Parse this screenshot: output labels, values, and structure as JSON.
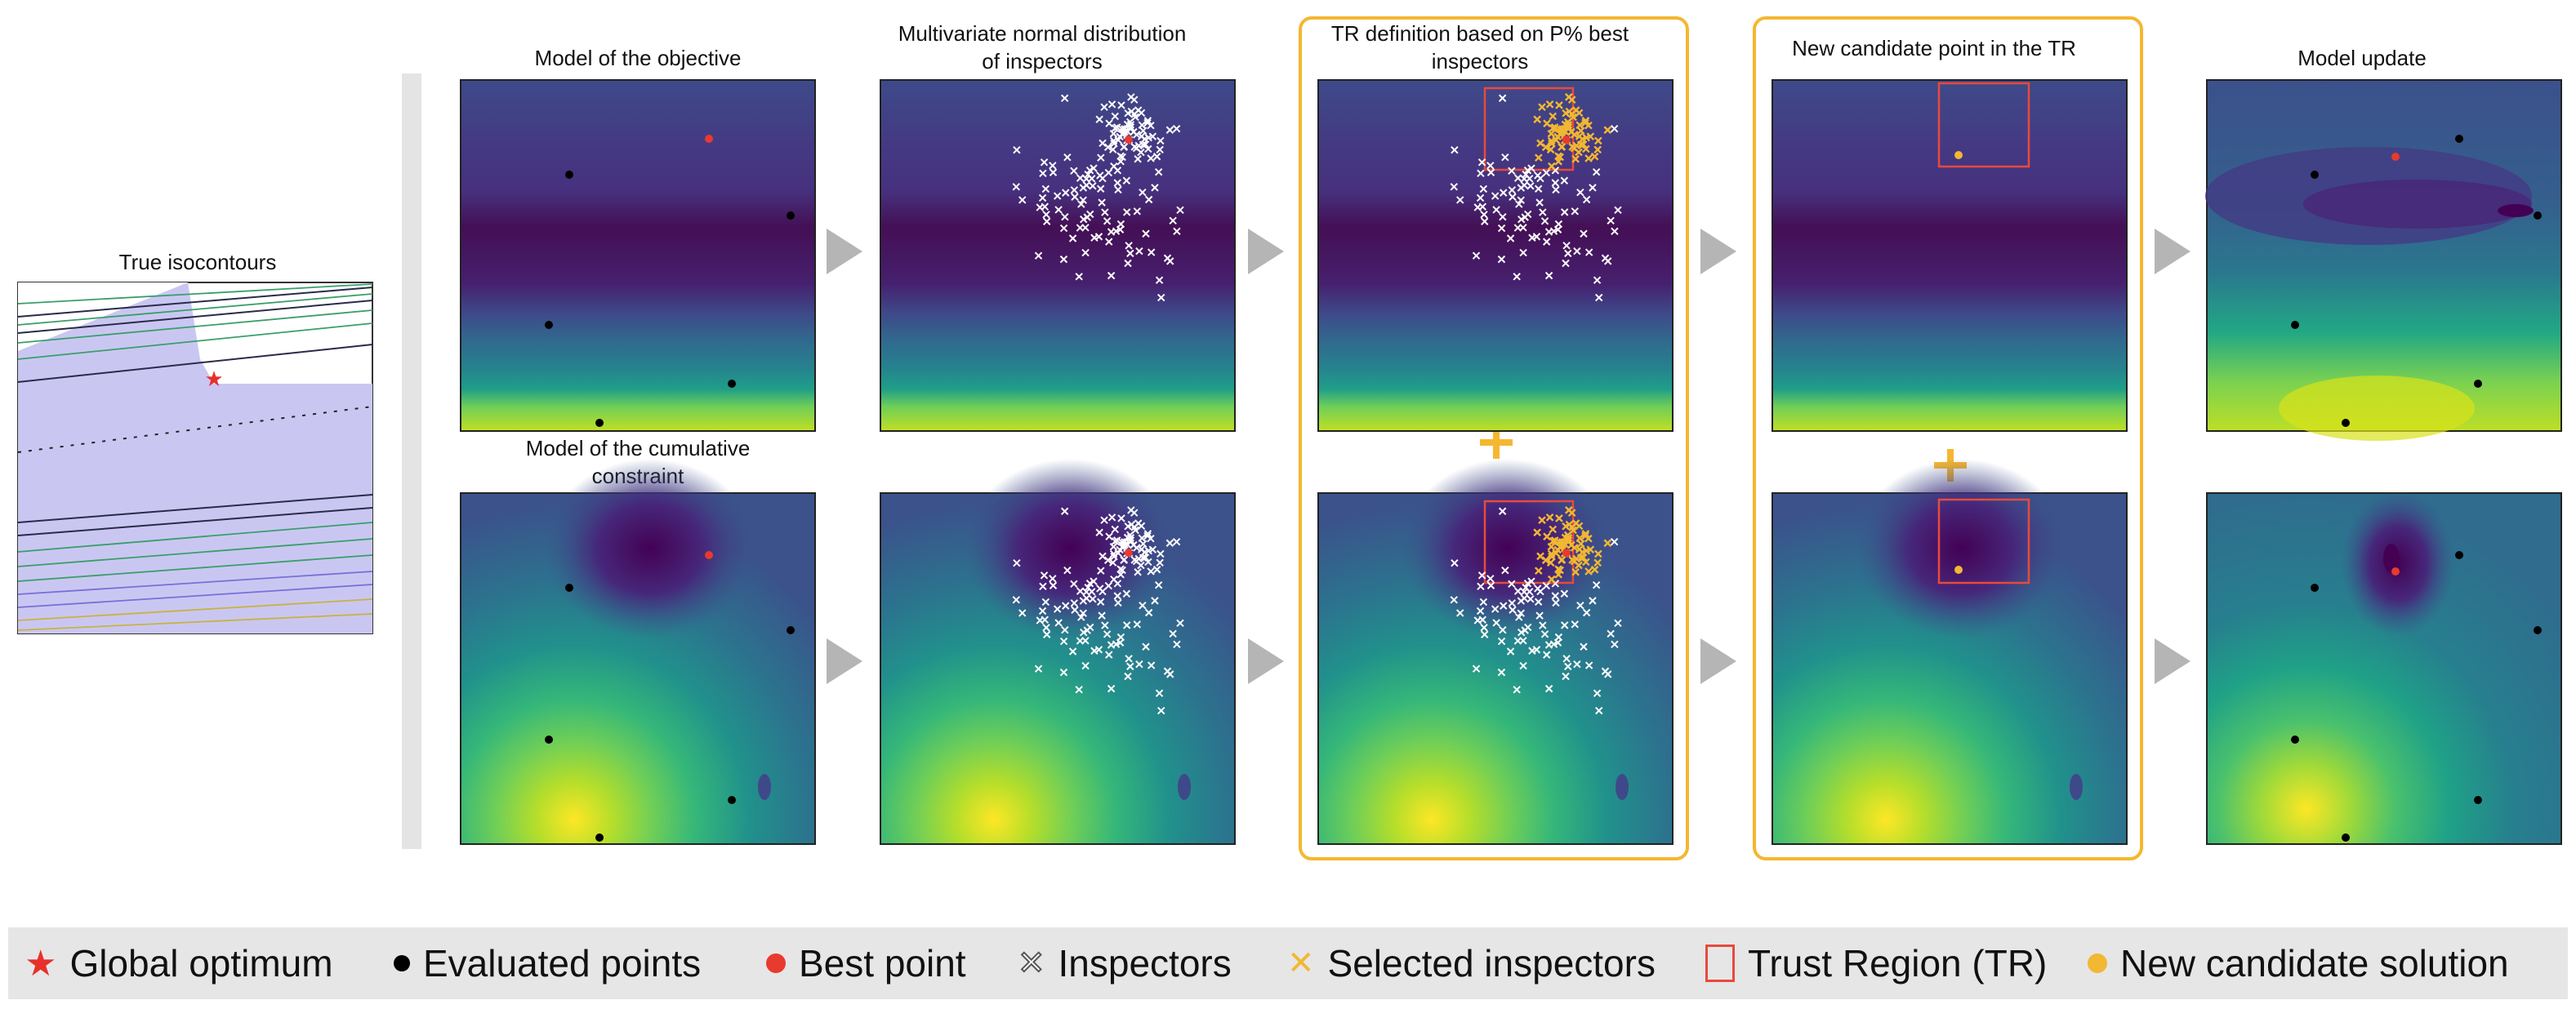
{
  "panels": {
    "true_iso_title": "True isocontours",
    "objective_title": "Model of the objective",
    "mvn_title_line1": "Multivariate normal distribution",
    "mvn_title_line2": "of inspectors",
    "tr_title_line1": "TR definition based on P% best",
    "tr_title_line2": "inspectors",
    "candidate_title": "New candidate point in the TR",
    "update_title": "Model update",
    "constraint_title_line1": "Model of the cumulative",
    "constraint_title_line2": "constraint"
  },
  "legend": {
    "global_optimum": "Global optimum",
    "evaluated_points": "Evaluated points",
    "best_point": "Best point",
    "inspectors": "Inspectors",
    "selected_inspectors": "Selected inspectors",
    "trust_region": "Trust Region (TR)",
    "new_candidate": "New candidate solution"
  },
  "colors": {
    "best_point": "#e83a2e",
    "selected_inspector": "#f2b733",
    "trust_region": "#e84a3c",
    "frame_highlight": "#f5b731",
    "arrow": "#b5b5b5",
    "feasible_region": "#c9c7f2"
  }
}
